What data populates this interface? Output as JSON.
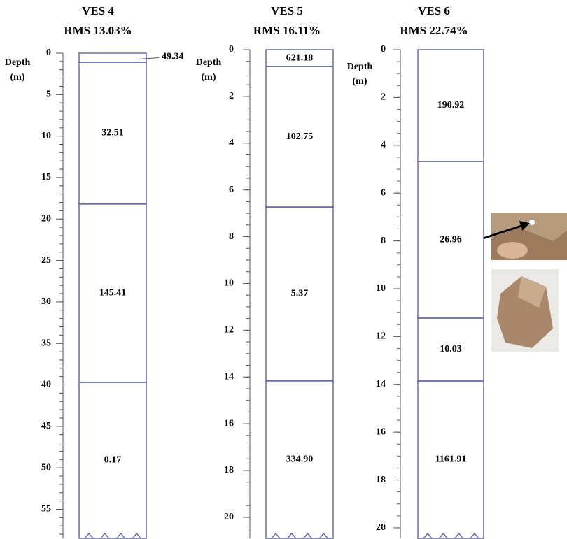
{
  "chart_data": [
    {
      "type": "layers",
      "title": "VES 4",
      "subtitle": "RMS 13.03%",
      "ylabel": "Depth",
      "ylabel_unit": "(m)",
      "ylim": [
        0,
        58.5
      ],
      "yticks": [
        0,
        5,
        10,
        15,
        20,
        25,
        30,
        35,
        40,
        45,
        50,
        55
      ],
      "interfaces": [
        1.1,
        18.2,
        39.7
      ],
      "values": [
        49.34,
        32.51,
        145.41,
        0.17
      ],
      "value_labels": [
        "49.34",
        "32.51",
        "145.41",
        "0.17"
      ],
      "color": "#6c6ca6"
    },
    {
      "type": "layers",
      "title": "VES 5",
      "subtitle": "RMS 16.11%",
      "ylabel": "Depth",
      "ylabel_unit": "(m)",
      "ylim": [
        0,
        20.9
      ],
      "yticks": [
        0,
        2,
        4,
        6,
        8,
        10,
        12,
        14,
        16,
        18,
        20
      ],
      "interfaces": [
        0.72,
        6.73,
        14.17
      ],
      "values": [
        621.18,
        102.75,
        5.37,
        334.9
      ],
      "value_labels": [
        "621.18",
        "102.75",
        "5.37",
        "334.90"
      ],
      "color": "#6c6ca6"
    },
    {
      "type": "layers",
      "title": "VES 6",
      "subtitle": "RMS 22.74%",
      "ylabel": "Depth",
      "ylabel_unit": "(m)",
      "ylim": [
        0,
        20.44
      ],
      "yticks": [
        0,
        2,
        4,
        6,
        8,
        10,
        12,
        14,
        16,
        18,
        20
      ],
      "interfaces": [
        4.68,
        11.23,
        13.86
      ],
      "values": [
        190.92,
        26.96,
        10.03,
        1161.91
      ],
      "value_labels": [
        "190.92",
        "26.96",
        "10.03",
        "1161.91"
      ],
      "color": "#6c6ca6"
    }
  ]
}
